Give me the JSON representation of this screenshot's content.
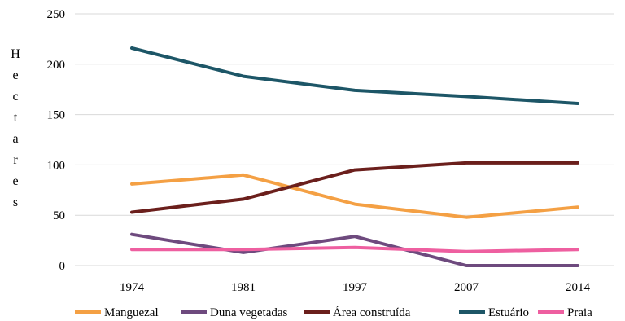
{
  "chart_data": {
    "type": "line",
    "categories": [
      "1974",
      "1981",
      "1997",
      "2007",
      "2014"
    ],
    "ylabel": "Hectares",
    "ylim": [
      0,
      250
    ],
    "yticks": [
      "0",
      "50",
      "100",
      "150",
      "200",
      "250"
    ],
    "grid": true,
    "legend_placement": "bottom",
    "series": [
      {
        "name": "Manguezal",
        "color": "#f4a044",
        "values": [
          81,
          90,
          61,
          48,
          58
        ]
      },
      {
        "name": "Duna vegetadas",
        "color": "#6e4a7e",
        "values": [
          31,
          13,
          29,
          0,
          0
        ]
      },
      {
        "name": "Área construída",
        "color": "#6b1f1c",
        "values": [
          53,
          66,
          95,
          102,
          102
        ]
      },
      {
        "name": "Estuário",
        "color": "#1d5667",
        "values": [
          216,
          188,
          174,
          168,
          161
        ]
      },
      {
        "name": "Praia",
        "color": "#ee5fa0",
        "values": [
          16,
          16,
          18,
          14,
          16
        ]
      }
    ]
  }
}
